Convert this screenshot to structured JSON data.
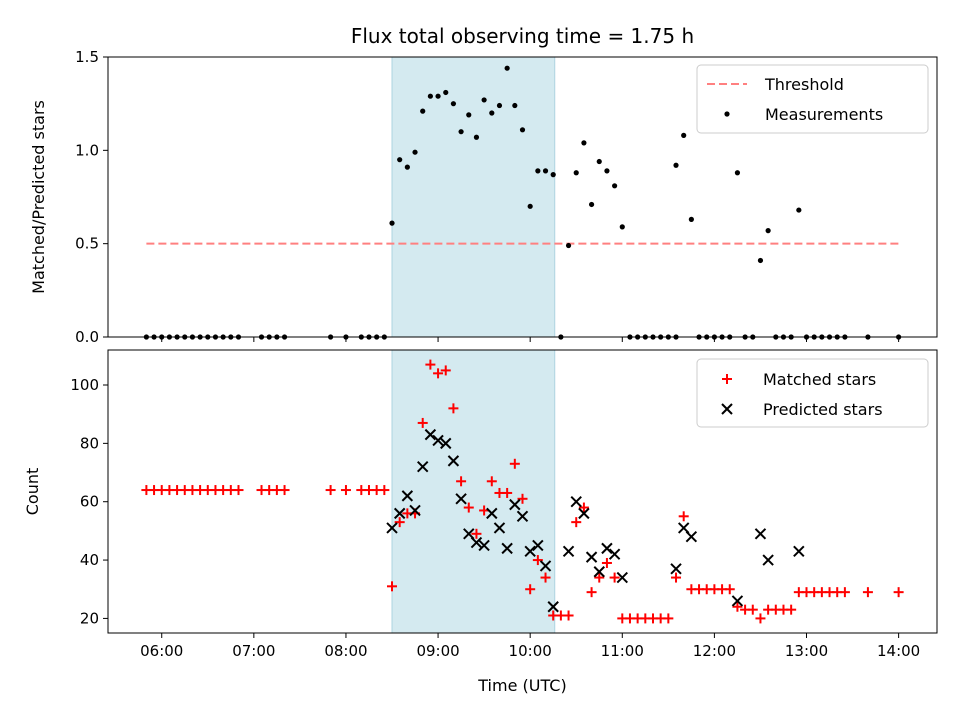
{
  "chart_data": [
    {
      "type": "scatter",
      "title": "Flux total observing time = 1.75 h",
      "ylabel": "Matched/Predicted stars",
      "xlim": [
        "05:25",
        "14:25"
      ],
      "ylim": [
        0,
        1.5
      ],
      "yticks": [
        "0.0",
        "0.5",
        "1.0",
        "1.5"
      ],
      "xticks": [
        "06:00",
        "07:00",
        "08:00",
        "09:00",
        "10:00",
        "11:00",
        "12:00",
        "13:00",
        "14:00"
      ],
      "grid": false,
      "legend_position": "top-right",
      "highlight_span": {
        "start": "08:30",
        "end": "10:16",
        "color": "#d4eaf0"
      },
      "threshold": {
        "name": "Threshold",
        "y": 0.5,
        "x_start": "05:50",
        "x_end": "14:00",
        "color": "#ff8080",
        "style": "dashed"
      },
      "series": [
        {
          "name": "Measurements",
          "color": "#000000",
          "marker": "dot",
          "points": [
            [
              "05:50",
              0
            ],
            [
              "05:55",
              0
            ],
            [
              "06:00",
              0
            ],
            [
              "06:05",
              0
            ],
            [
              "06:10",
              0
            ],
            [
              "06:15",
              0
            ],
            [
              "06:20",
              0
            ],
            [
              "06:25",
              0
            ],
            [
              "06:30",
              0
            ],
            [
              "06:35",
              0
            ],
            [
              "06:40",
              0
            ],
            [
              "06:45",
              0
            ],
            [
              "06:50",
              0
            ],
            [
              "07:05",
              0
            ],
            [
              "07:10",
              0
            ],
            [
              "07:15",
              0
            ],
            [
              "07:20",
              0
            ],
            [
              "07:50",
              0
            ],
            [
              "08:00",
              0
            ],
            [
              "08:10",
              0
            ],
            [
              "08:15",
              0
            ],
            [
              "08:20",
              0
            ],
            [
              "08:25",
              0
            ],
            [
              "08:30",
              0.61
            ],
            [
              "08:35",
              0.95
            ],
            [
              "08:40",
              0.91
            ],
            [
              "08:45",
              0.99
            ],
            [
              "08:50",
              1.21
            ],
            [
              "08:55",
              1.29
            ],
            [
              "09:00",
              1.29
            ],
            [
              "09:05",
              1.31
            ],
            [
              "09:10",
              1.25
            ],
            [
              "09:15",
              1.1
            ],
            [
              "09:20",
              1.19
            ],
            [
              "09:25",
              1.07
            ],
            [
              "09:30",
              1.27
            ],
            [
              "09:35",
              1.2
            ],
            [
              "09:40",
              1.24
            ],
            [
              "09:45",
              1.44
            ],
            [
              "09:50",
              1.24
            ],
            [
              "09:55",
              1.11
            ],
            [
              "10:00",
              0.7
            ],
            [
              "10:05",
              0.89
            ],
            [
              "10:10",
              0.89
            ],
            [
              "10:15",
              0.87
            ],
            [
              "10:20",
              0
            ],
            [
              "10:25",
              0.49
            ],
            [
              "10:30",
              0.88
            ],
            [
              "10:35",
              1.04
            ],
            [
              "10:40",
              0.71
            ],
            [
              "10:45",
              0.94
            ],
            [
              "10:50",
              0.89
            ],
            [
              "10:55",
              0.81
            ],
            [
              "11:00",
              0.59
            ],
            [
              "11:05",
              0
            ],
            [
              "11:10",
              0
            ],
            [
              "11:15",
              0
            ],
            [
              "11:20",
              0
            ],
            [
              "11:25",
              0
            ],
            [
              "11:30",
              0
            ],
            [
              "11:35",
              0
            ],
            [
              "11:35",
              0.92
            ],
            [
              "11:40",
              1.08
            ],
            [
              "11:45",
              0.63
            ],
            [
              "11:50",
              0
            ],
            [
              "11:55",
              0
            ],
            [
              "12:00",
              0
            ],
            [
              "12:05",
              0
            ],
            [
              "12:10",
              0
            ],
            [
              "12:15",
              0.88
            ],
            [
              "12:20",
              0
            ],
            [
              "12:25",
              0
            ],
            [
              "12:30",
              0.41
            ],
            [
              "12:35",
              0.57
            ],
            [
              "12:40",
              0
            ],
            [
              "12:45",
              0
            ],
            [
              "12:50",
              0
            ],
            [
              "12:55",
              0.68
            ],
            [
              "13:00",
              0
            ],
            [
              "13:05",
              0
            ],
            [
              "13:10",
              0
            ],
            [
              "13:15",
              0
            ],
            [
              "13:20",
              0
            ],
            [
              "13:25",
              0
            ],
            [
              "13:40",
              0
            ],
            [
              "14:00",
              0
            ]
          ]
        }
      ]
    },
    {
      "type": "scatter",
      "xlabel": "Time (UTC)",
      "ylabel": "Count",
      "xlim": [
        "05:25",
        "14:25"
      ],
      "ylim": [
        15,
        112
      ],
      "yticks": [
        "20",
        "40",
        "60",
        "80",
        "100"
      ],
      "xticks": [
        "06:00",
        "07:00",
        "08:00",
        "09:00",
        "10:00",
        "11:00",
        "12:00",
        "13:00",
        "14:00"
      ],
      "grid": false,
      "legend_position": "top-right",
      "highlight_span": {
        "start": "08:30",
        "end": "10:16",
        "color": "#d4eaf0"
      },
      "series": [
        {
          "name": "Matched stars",
          "color": "#ff0000",
          "marker": "plus",
          "points": [
            [
              "05:50",
              64
            ],
            [
              "05:55",
              64
            ],
            [
              "06:00",
              64
            ],
            [
              "06:05",
              64
            ],
            [
              "06:10",
              64
            ],
            [
              "06:15",
              64
            ],
            [
              "06:20",
              64
            ],
            [
              "06:25",
              64
            ],
            [
              "06:30",
              64
            ],
            [
              "06:35",
              64
            ],
            [
              "06:40",
              64
            ],
            [
              "06:45",
              64
            ],
            [
              "06:50",
              64
            ],
            [
              "07:05",
              64
            ],
            [
              "07:10",
              64
            ],
            [
              "07:15",
              64
            ],
            [
              "07:20",
              64
            ],
            [
              "07:50",
              64
            ],
            [
              "08:00",
              64
            ],
            [
              "08:10",
              64
            ],
            [
              "08:15",
              64
            ],
            [
              "08:20",
              64
            ],
            [
              "08:25",
              64
            ],
            [
              "08:30",
              31
            ],
            [
              "08:35",
              53
            ],
            [
              "08:40",
              56
            ],
            [
              "08:45",
              56
            ],
            [
              "08:50",
              87
            ],
            [
              "08:55",
              107
            ],
            [
              "09:00",
              104
            ],
            [
              "09:05",
              105
            ],
            [
              "09:10",
              92
            ],
            [
              "09:15",
              67
            ],
            [
              "09:20",
              58
            ],
            [
              "09:25",
              49
            ],
            [
              "09:30",
              57
            ],
            [
              "09:35",
              67
            ],
            [
              "09:40",
              63
            ],
            [
              "09:45",
              63
            ],
            [
              "09:50",
              73
            ],
            [
              "09:55",
              61
            ],
            [
              "10:00",
              30
            ],
            [
              "10:05",
              40
            ],
            [
              "10:10",
              34
            ],
            [
              "10:15",
              21
            ],
            [
              "10:20",
              21
            ],
            [
              "10:25",
              21
            ],
            [
              "10:30",
              53
            ],
            [
              "10:35",
              58
            ],
            [
              "10:40",
              29
            ],
            [
              "10:45",
              34
            ],
            [
              "10:50",
              39
            ],
            [
              "10:55",
              34
            ],
            [
              "11:00",
              20
            ],
            [
              "11:05",
              20
            ],
            [
              "11:10",
              20
            ],
            [
              "11:15",
              20
            ],
            [
              "11:20",
              20
            ],
            [
              "11:25",
              20
            ],
            [
              "11:30",
              20
            ],
            [
              "11:35",
              34
            ],
            [
              "11:40",
              55
            ],
            [
              "11:45",
              30
            ],
            [
              "11:50",
              30
            ],
            [
              "11:55",
              30
            ],
            [
              "12:00",
              30
            ],
            [
              "12:05",
              30
            ],
            [
              "12:10",
              30
            ],
            [
              "12:15",
              24
            ],
            [
              "12:20",
              23
            ],
            [
              "12:25",
              23
            ],
            [
              "12:30",
              20
            ],
            [
              "12:35",
              23
            ],
            [
              "12:40",
              23
            ],
            [
              "12:45",
              23
            ],
            [
              "12:50",
              23
            ],
            [
              "12:55",
              29
            ],
            [
              "13:00",
              29
            ],
            [
              "13:05",
              29
            ],
            [
              "13:10",
              29
            ],
            [
              "13:15",
              29
            ],
            [
              "13:20",
              29
            ],
            [
              "13:25",
              29
            ],
            [
              "13:40",
              29
            ],
            [
              "14:00",
              29
            ]
          ]
        },
        {
          "name": "Predicted stars",
          "color": "#000000",
          "marker": "x",
          "points": [
            [
              "08:30",
              51
            ],
            [
              "08:35",
              56
            ],
            [
              "08:40",
              62
            ],
            [
              "08:45",
              57
            ],
            [
              "08:50",
              72
            ],
            [
              "08:55",
              83
            ],
            [
              "09:00",
              81
            ],
            [
              "09:05",
              80
            ],
            [
              "09:10",
              74
            ],
            [
              "09:15",
              61
            ],
            [
              "09:20",
              49
            ],
            [
              "09:25",
              46
            ],
            [
              "09:30",
              45
            ],
            [
              "09:35",
              56
            ],
            [
              "09:40",
              51
            ],
            [
              "09:45",
              44
            ],
            [
              "09:50",
              59
            ],
            [
              "09:55",
              55
            ],
            [
              "10:00",
              43
            ],
            [
              "10:05",
              45
            ],
            [
              "10:10",
              38
            ],
            [
              "10:15",
              24
            ],
            [
              "10:25",
              43
            ],
            [
              "10:30",
              60
            ],
            [
              "10:35",
              56
            ],
            [
              "10:40",
              41
            ],
            [
              "10:45",
              36
            ],
            [
              "10:50",
              44
            ],
            [
              "10:55",
              42
            ],
            [
              "11:00",
              34
            ],
            [
              "11:35",
              37
            ],
            [
              "11:40",
              51
            ],
            [
              "11:45",
              48
            ],
            [
              "12:15",
              26
            ],
            [
              "12:30",
              49
            ],
            [
              "12:35",
              40
            ],
            [
              "12:55",
              43
            ]
          ]
        }
      ]
    }
  ]
}
